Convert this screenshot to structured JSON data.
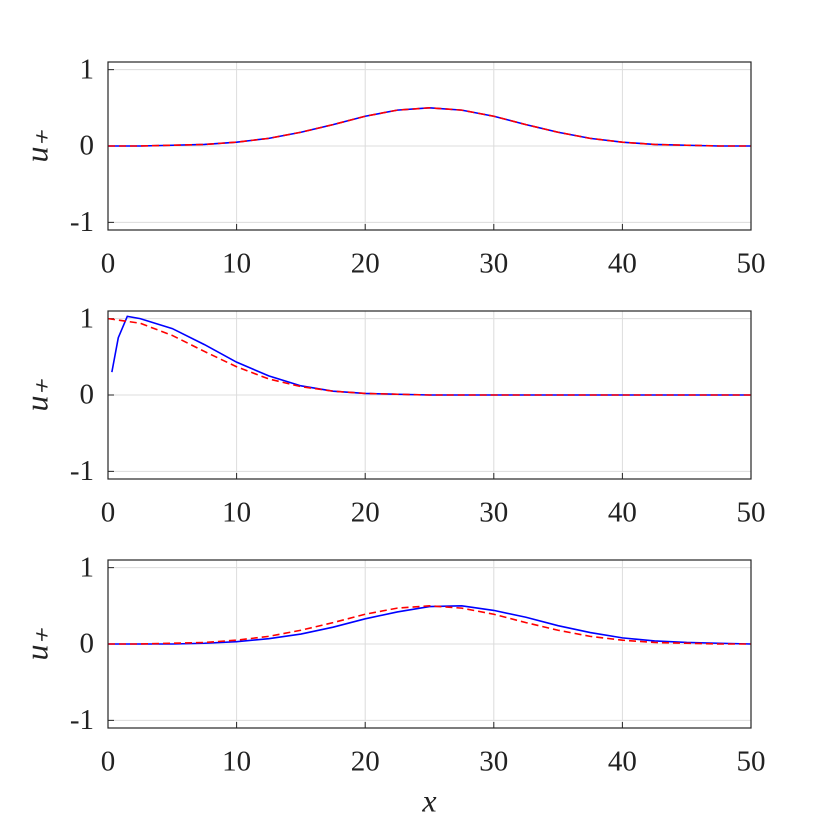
{
  "chart_data": [
    {
      "type": "line",
      "ylabel": "u₊",
      "xlim": [
        0,
        50
      ],
      "ylim": [
        -1.1,
        1.1
      ],
      "xticks": [
        0,
        10,
        20,
        30,
        40,
        50
      ],
      "yticks": [
        -1,
        0,
        1
      ],
      "grid": true,
      "series": [
        {
          "color": "#0000ff",
          "style": "solid",
          "x": [
            0,
            2.5,
            5,
            7.5,
            10,
            12.5,
            15,
            17.5,
            20,
            22.5,
            25,
            27.5,
            30,
            32.5,
            35,
            37.5,
            40,
            42.5,
            45,
            47.5,
            50
          ],
          "values": [
            0.0,
            0.0,
            0.01,
            0.02,
            0.05,
            0.1,
            0.18,
            0.28,
            0.39,
            0.47,
            0.5,
            0.47,
            0.39,
            0.28,
            0.18,
            0.1,
            0.05,
            0.02,
            0.01,
            0.0,
            0.0
          ]
        },
        {
          "color": "#ff0000",
          "style": "dashed",
          "x": [
            0,
            2.5,
            5,
            7.5,
            10,
            12.5,
            15,
            17.5,
            20,
            22.5,
            25,
            27.5,
            30,
            32.5,
            35,
            37.5,
            40,
            42.5,
            45,
            47.5,
            50
          ],
          "values": [
            0.0,
            0.0,
            0.01,
            0.02,
            0.05,
            0.1,
            0.18,
            0.28,
            0.39,
            0.47,
            0.5,
            0.47,
            0.39,
            0.28,
            0.18,
            0.1,
            0.05,
            0.02,
            0.01,
            0.0,
            0.0
          ]
        }
      ]
    },
    {
      "type": "line",
      "ylabel": "u₊",
      "xlim": [
        0,
        50
      ],
      "ylim": [
        -1.1,
        1.1
      ],
      "xticks": [
        0,
        10,
        20,
        30,
        40,
        50
      ],
      "yticks": [
        -1,
        0,
        1
      ],
      "grid": true,
      "series": [
        {
          "color": "#0000ff",
          "style": "solid",
          "x": [
            0.3,
            0.8,
            1.5,
            2.5,
            5,
            7.5,
            10,
            12.5,
            15,
            17.5,
            20,
            22.5,
            25,
            30,
            35,
            40,
            45,
            50
          ],
          "values": [
            0.3,
            0.75,
            1.03,
            1.0,
            0.87,
            0.66,
            0.43,
            0.25,
            0.12,
            0.05,
            0.02,
            0.01,
            0.0,
            0.0,
            0.0,
            0.0,
            0.0,
            0.0
          ]
        },
        {
          "color": "#ff0000",
          "style": "dashed",
          "x": [
            0,
            2.5,
            5,
            7.5,
            10,
            12.5,
            15,
            17.5,
            20,
            22.5,
            25,
            30,
            35,
            40,
            45,
            50
          ],
          "values": [
            1.0,
            0.94,
            0.78,
            0.57,
            0.37,
            0.21,
            0.11,
            0.05,
            0.02,
            0.01,
            0.0,
            0.0,
            0.0,
            0.0,
            0.0,
            0.0
          ]
        }
      ]
    },
    {
      "type": "line",
      "ylabel": "u₊",
      "xlabel": "x",
      "xlim": [
        0,
        50
      ],
      "ylim": [
        -1.1,
        1.1
      ],
      "xticks": [
        0,
        10,
        20,
        30,
        40,
        50
      ],
      "yticks": [
        -1,
        0,
        1
      ],
      "grid": true,
      "series": [
        {
          "color": "#0000ff",
          "style": "solid",
          "x": [
            0,
            2.5,
            5,
            7.5,
            10,
            12.5,
            15,
            17.5,
            20,
            22.5,
            25,
            27.5,
            30,
            32.5,
            35,
            37.5,
            40,
            42.5,
            45,
            47.5,
            50
          ],
          "values": [
            0.0,
            0.0,
            0.0,
            0.01,
            0.03,
            0.07,
            0.13,
            0.22,
            0.33,
            0.42,
            0.49,
            0.5,
            0.44,
            0.35,
            0.24,
            0.15,
            0.08,
            0.04,
            0.02,
            0.01,
            0.0
          ]
        },
        {
          "color": "#ff0000",
          "style": "dashed",
          "x": [
            0,
            2.5,
            5,
            7.5,
            10,
            12.5,
            15,
            17.5,
            20,
            22.5,
            25,
            27.5,
            30,
            32.5,
            35,
            37.5,
            40,
            42.5,
            45,
            47.5,
            50
          ],
          "values": [
            0.0,
            0.0,
            0.01,
            0.02,
            0.05,
            0.1,
            0.18,
            0.28,
            0.39,
            0.47,
            0.5,
            0.47,
            0.39,
            0.28,
            0.18,
            0.1,
            0.05,
            0.02,
            0.01,
            0.0,
            0.0
          ]
        }
      ]
    }
  ]
}
